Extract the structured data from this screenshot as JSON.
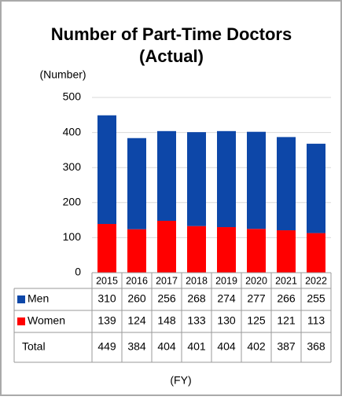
{
  "chart_data": {
    "type": "stacked_bar",
    "title": "Number of Part-Time Doctors",
    "subtitle": "(Actual)",
    "y_label": "(Number)",
    "x_label": "(FY)",
    "categories": [
      "2015",
      "2016",
      "2017",
      "2018",
      "2019",
      "2020",
      "2021",
      "2022"
    ],
    "series": [
      {
        "name": "Women",
        "color": "#ff0000",
        "values": [
          139,
          124,
          148,
          133,
          130,
          125,
          121,
          113
        ]
      },
      {
        "name": "Men",
        "color": "#0d47a8",
        "values": [
          310,
          260,
          256,
          268,
          274,
          277,
          266,
          255
        ]
      }
    ],
    "total_label": "Total",
    "totals": [
      449,
      384,
      404,
      401,
      404,
      402,
      387,
      368
    ],
    "ylim": [
      0,
      500
    ],
    "yticks": [
      0,
      100,
      200,
      300,
      400,
      500
    ],
    "grid": true
  }
}
